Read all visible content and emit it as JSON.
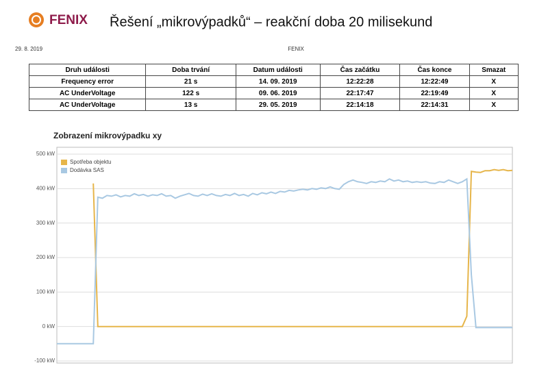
{
  "page_header": {
    "logo": "FENIX",
    "title": "Řešení „mikrovýpadků“ – reakční doba 20 milisekund",
    "date": "29. 8. 2019",
    "center": "FENIX"
  },
  "table": {
    "header": [
      "Druh události",
      "Doba trvání",
      "Datum události",
      "Čas začátku",
      "Čas konce",
      "Smazat"
    ],
    "rows": [
      [
        "Frequency error",
        "21 s",
        "14. 09. 2019",
        "12:22:28",
        "12:22:49",
        "X"
      ],
      [
        "AC UnderVoltage",
        "122 s",
        "09. 06. 2019",
        "22:17:47",
        "22:19:49",
        "X"
      ],
      [
        "AC UnderVoltage",
        "13 s",
        "29. 05. 2019",
        "22:14:18",
        "22:14:31",
        "X"
      ]
    ]
  },
  "chart_data": {
    "type": "line",
    "title": "Zobrazení mikrovýpadku xy",
    "categories": [
      null,
      null,
      null,
      null,
      null,
      null,
      null,
      null,
      null,
      null,
      null,
      null,
      null,
      null,
      null,
      null,
      null,
      null,
      null,
      null,
      null,
      null,
      null,
      null,
      null,
      null,
      null,
      null,
      null,
      null,
      null,
      null,
      null,
      null,
      null,
      null,
      null,
      null,
      null,
      null,
      null,
      null,
      null,
      null,
      null,
      null,
      null,
      null,
      null,
      null,
      null,
      null,
      null,
      null,
      null,
      null,
      null,
      null,
      null,
      null,
      null,
      null,
      null,
      null,
      null,
      null,
      null,
      null,
      null,
      null,
      null,
      null,
      null,
      null,
      null,
      null,
      null,
      null,
      null,
      null,
      null,
      null,
      null,
      null,
      null,
      null,
      null,
      null,
      null,
      null,
      null,
      null,
      null,
      null,
      null,
      null,
      null,
      null,
      null,
      null,
      null
    ],
    "ylim": [
      -100,
      500
    ],
    "yticks": [
      {
        "value": -100,
        "label": "-100 kW"
      },
      {
        "value": 0,
        "label": "0 kW"
      },
      {
        "value": 100,
        "label": "100 kW"
      },
      {
        "value": 200,
        "label": "200 kW"
      },
      {
        "value": 300,
        "label": "300 kW"
      },
      {
        "value": 400,
        "label": "400 kW"
      },
      {
        "value": 500,
        "label": "500 kW"
      }
    ],
    "grid": true,
    "legend": "top-left",
    "series": [
      {
        "name": "Spotřeba objektu",
        "color": "#e6b54a",
        "values": [
          null,
          null,
          null,
          null,
          null,
          null,
          null,
          null,
          415,
          0,
          0,
          0,
          0,
          0,
          0,
          0,
          0,
          0,
          0,
          0,
          0,
          0,
          0,
          0,
          0,
          0,
          0,
          0,
          0,
          0,
          0,
          0,
          0,
          0,
          0,
          0,
          0,
          0,
          0,
          0,
          0,
          0,
          0,
          0,
          0,
          0,
          0,
          0,
          0,
          0,
          0,
          0,
          0,
          0,
          0,
          0,
          0,
          0,
          0,
          0,
          0,
          0,
          0,
          0,
          0,
          0,
          0,
          0,
          0,
          0,
          0,
          0,
          0,
          0,
          0,
          0,
          0,
          0,
          0,
          0,
          0,
          0,
          0,
          0,
          0,
          0,
          0,
          0,
          0,
          0,
          30,
          450,
          448,
          447,
          452,
          452,
          455,
          453,
          455,
          452,
          453
        ]
      },
      {
        "name": "Dodávka SAS",
        "color": "#a8c8e2",
        "values": [
          -50,
          -50,
          -50,
          -50,
          -50,
          -50,
          -50,
          -50,
          -50,
          375,
          372,
          380,
          378,
          382,
          376,
          380,
          378,
          385,
          380,
          383,
          378,
          382,
          380,
          385,
          378,
          380,
          372,
          378,
          382,
          386,
          380,
          378,
          384,
          380,
          385,
          380,
          378,
          383,
          380,
          386,
          380,
          383,
          378,
          386,
          382,
          388,
          385,
          390,
          386,
          392,
          390,
          395,
          393,
          396,
          398,
          396,
          400,
          398,
          402,
          400,
          405,
          400,
          398,
          412,
          420,
          425,
          420,
          418,
          415,
          420,
          418,
          422,
          420,
          428,
          422,
          425,
          420,
          422,
          418,
          420,
          418,
          420,
          416,
          415,
          420,
          418,
          425,
          420,
          415,
          420,
          428,
          150,
          -3,
          -3,
          -3,
          -3,
          -3,
          -3,
          -3,
          -3,
          -3
        ]
      }
    ]
  }
}
